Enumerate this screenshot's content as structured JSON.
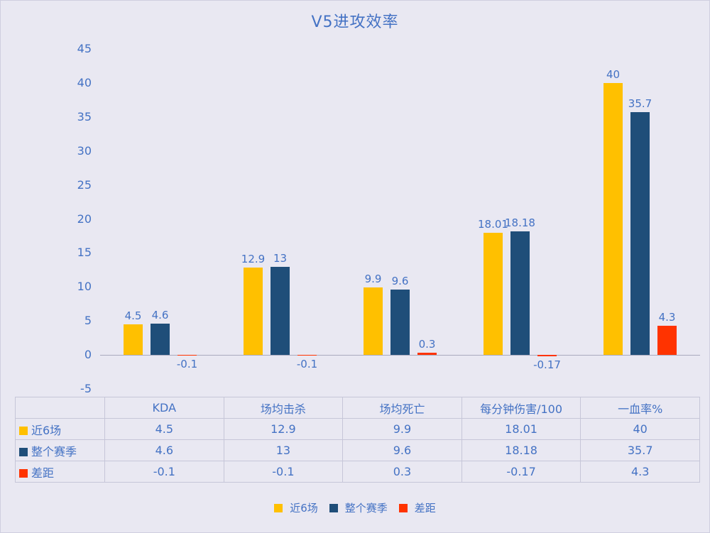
{
  "chart_data": {
    "type": "bar",
    "title": "V5进攻效率",
    "categories": [
      "KDA",
      "场均击杀",
      "场均死亡",
      "每分钟伤害/100",
      "一血率%"
    ],
    "series": [
      {
        "name": "近6场",
        "color": "#FFC000",
        "values": [
          4.5,
          12.9,
          9.9,
          18.01,
          40
        ],
        "labels": [
          "4.5",
          "12.9",
          "9.9",
          "18.01",
          "40"
        ]
      },
      {
        "name": "整个赛季",
        "color": "#1F4E79",
        "values": [
          4.6,
          13,
          9.6,
          18.18,
          35.7
        ],
        "labels": [
          "4.6",
          "13",
          "9.6",
          "18.18",
          "35.7"
        ]
      },
      {
        "name": "差距",
        "color": "#FF3300",
        "values": [
          -0.1,
          -0.1,
          0.3,
          -0.17,
          4.3
        ],
        "labels": [
          "-0.1",
          "-0.1",
          "0.3",
          "-0.17",
          "4.3"
        ]
      }
    ],
    "ylim": [
      -5,
      45
    ],
    "ytick_step": 5,
    "grid": false,
    "legend_position": "bottom",
    "data_table": true
  },
  "colors": {
    "background": "#E9E8F2",
    "text_blue": "#4472C4",
    "axis_line": "#A9A9BE",
    "table_border": "#C6C6D8"
  }
}
